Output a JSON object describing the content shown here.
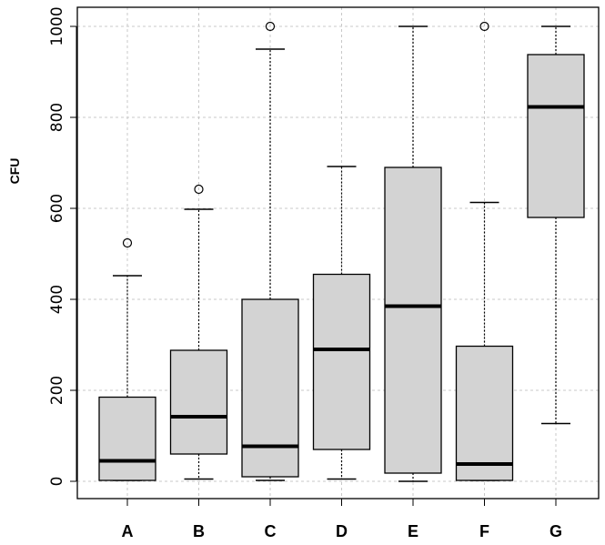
{
  "chart_data": {
    "type": "boxplot",
    "title": "",
    "xlabel": "",
    "ylabel": "CFU",
    "ylim": [
      -45,
      1045
    ],
    "yticks": [
      0,
      200,
      400,
      600,
      800,
      1000
    ],
    "ytick_labels": [
      "0",
      "200",
      "400",
      "600",
      "800",
      "1000"
    ],
    "grid": true,
    "categories": [
      "A",
      "B",
      "C",
      "D",
      "E",
      "F",
      "G"
    ],
    "boxes": [
      {
        "name": "A",
        "whisker_low": 2,
        "q1": 2,
        "median": 45,
        "q3": 185,
        "whisker_high": 452,
        "outliers": [
          524
        ]
      },
      {
        "name": "B",
        "whisker_low": 5,
        "q1": 60,
        "median": 142,
        "q3": 288,
        "whisker_high": 598,
        "outliers": [
          642
        ]
      },
      {
        "name": "C",
        "whisker_low": 2,
        "q1": 10,
        "median": 77,
        "q3": 400,
        "whisker_high": 950,
        "outliers": [
          1000
        ]
      },
      {
        "name": "D",
        "whisker_low": 5,
        "q1": 70,
        "median": 290,
        "q3": 455,
        "whisker_high": 692,
        "outliers": []
      },
      {
        "name": "E",
        "whisker_low": 0,
        "q1": 18,
        "median": 385,
        "q3": 690,
        "whisker_high": 1000,
        "outliers": []
      },
      {
        "name": "F",
        "whisker_low": 2,
        "q1": 2,
        "median": 38,
        "q3": 297,
        "whisker_high": 613,
        "outliers": [
          1000
        ]
      },
      {
        "name": "G",
        "whisker_low": 127,
        "q1": 580,
        "median": 823,
        "q3": 938,
        "whisker_high": 1000,
        "outliers": []
      }
    ],
    "colors": {
      "box_fill": "#d3d3d3",
      "box_stroke": "#000000",
      "median": "#000000",
      "grid": "#c8c8c8",
      "axis": "#000000"
    }
  }
}
